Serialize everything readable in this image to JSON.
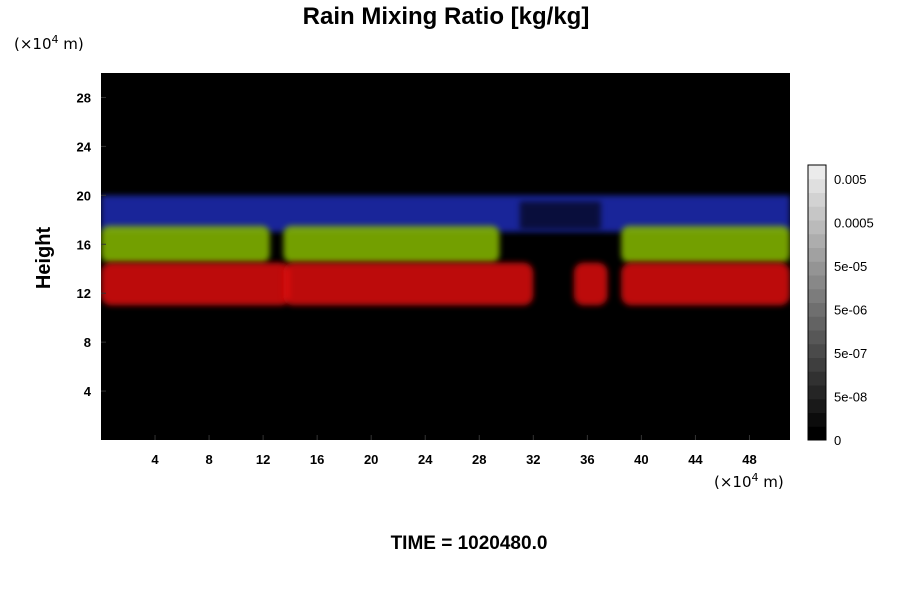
{
  "chart_data": {
    "type": "heatmap",
    "title": "Rain Mixing Ratio [kg/kg]",
    "ylabel": "Height",
    "x_unit_base": "(×10",
    "x_unit_exp": "4",
    "x_unit_rest": " m)",
    "y_unit_base": "(×10",
    "y_unit_exp": "4",
    "y_unit_rest": " m)",
    "xlim": [
      0,
      51
    ],
    "ylim": [
      0,
      30
    ],
    "x_ticks": [
      "4",
      "8",
      "12",
      "16",
      "20",
      "24",
      "28",
      "32",
      "36",
      "40",
      "44",
      "48"
    ],
    "y_ticks": [
      "4",
      "8",
      "12",
      "16",
      "20",
      "24",
      "28"
    ],
    "time_label": "TIME = 1020480.0",
    "background_color": "#000000",
    "layer_colors": {
      "upper": "#2233cc",
      "middle": "#88bb00",
      "lower": "#dd1111"
    },
    "layers": [
      {
        "name": "upper",
        "y_range": [
          17,
          20
        ]
      },
      {
        "name": "middle",
        "y_range": [
          14.5,
          17.5
        ]
      },
      {
        "name": "lower",
        "y_range": [
          11,
          14.5
        ]
      }
    ],
    "colorbar": {
      "ticks": [
        "0.005",
        "0.0005",
        "5e-05",
        "5e-06",
        "5e-07",
        "5e-08",
        "0"
      ],
      "levels": 20
    }
  }
}
